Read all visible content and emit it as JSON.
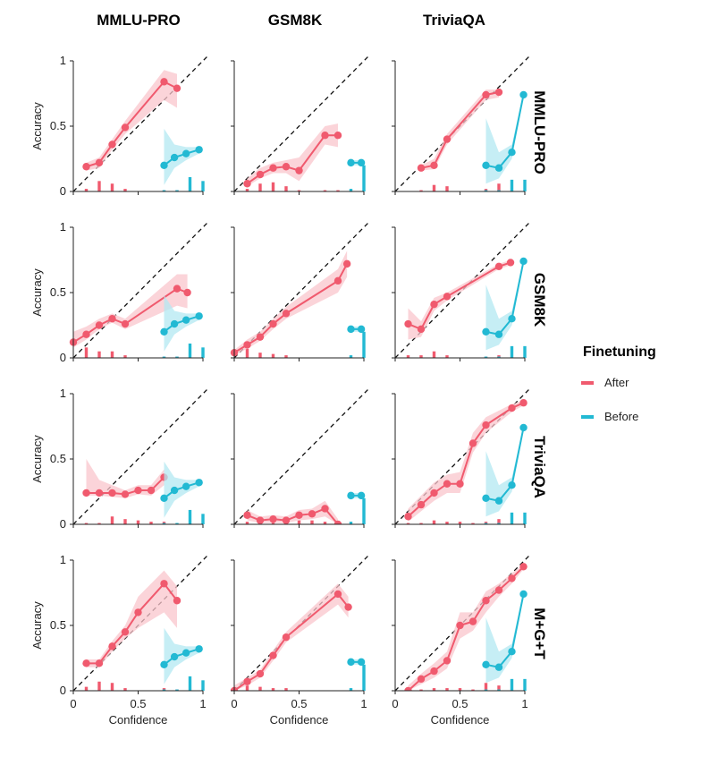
{
  "colors": {
    "after": "#f05a6e",
    "after_band": "#f9c5cc",
    "before": "#22b9d3",
    "before_band": "#b3e8f1",
    "diag": "#111111"
  },
  "chart_data": {
    "type": "line",
    "title": "",
    "col_titles": [
      "MMLU-PRO",
      "GSM8K",
      "TriviaQA"
    ],
    "row_titles": [
      "MMLU-PRO",
      "GSM8K",
      "TriviaQA",
      "M+G+T"
    ],
    "xlabel": "Confidence",
    "ylabel": "Accuracy",
    "xlim": [
      0,
      1
    ],
    "ylim": [
      0,
      1
    ],
    "xticks": [
      0,
      0.5,
      1
    ],
    "yticks": [
      0,
      0.5,
      1
    ],
    "xtick_labels": [
      "0",
      "0.5",
      "1"
    ],
    "ytick_labels": [
      "0",
      "0.5",
      "1"
    ],
    "legend": {
      "title": "Finetuning",
      "position": "right",
      "entries": [
        "After",
        "Before"
      ]
    },
    "before": {
      "MMLU-PRO": {
        "x": [
          0.7,
          0.78,
          0.87,
          0.97
        ],
        "y": [
          0.2,
          0.26,
          0.29,
          0.32
        ],
        "lo": [
          0.05,
          0.18,
          0.24,
          0.29
        ],
        "hi": [
          0.48,
          0.36,
          0.34,
          0.34
        ],
        "bar_x": [
          0.7,
          0.8,
          0.9,
          1.0
        ],
        "bar_h": [
          0.01,
          0.01,
          0.11,
          0.08
        ]
      },
      "GSM8K": {
        "x": [
          0.9,
          0.98
        ],
        "y": [
          0.22,
          0.22
        ],
        "lo": [
          0.2,
          0.2
        ],
        "hi": [
          0.24,
          0.24
        ],
        "bar_x": [
          0.9,
          1.0
        ],
        "bar_h": [
          0.02,
          0.2
        ]
      },
      "TriviaQA": {
        "x": [
          0.7,
          0.8,
          0.9,
          0.99
        ],
        "y": [
          0.2,
          0.18,
          0.3,
          0.74
        ],
        "lo": [
          0.06,
          0.1,
          0.25,
          0.72
        ],
        "hi": [
          0.56,
          0.3,
          0.36,
          0.76
        ],
        "bar_x": [
          0.7,
          0.8,
          0.9,
          1.0
        ],
        "bar_h": [
          0.01,
          0.01,
          0.09,
          0.09
        ]
      }
    },
    "panels": [
      {
        "row": "MMLU-PRO",
        "col": "MMLU-PRO",
        "x": [
          0.1,
          0.2,
          0.3,
          0.4,
          0.7,
          0.8
        ],
        "y": [
          0.19,
          0.22,
          0.36,
          0.49,
          0.84,
          0.79
        ],
        "lo": [
          0.16,
          0.18,
          0.32,
          0.44,
          0.7,
          0.64
        ],
        "hi": [
          0.22,
          0.26,
          0.4,
          0.54,
          0.93,
          0.9
        ],
        "bar_x": [
          0.1,
          0.2,
          0.3,
          0.4,
          0.7,
          0.8
        ],
        "bar_h": [
          0.02,
          0.08,
          0.06,
          0.02,
          0.01,
          0.01
        ]
      },
      {
        "row": "MMLU-PRO",
        "col": "GSM8K",
        "x": [
          0.1,
          0.2,
          0.3,
          0.4,
          0.5,
          0.7,
          0.8
        ],
        "y": [
          0.06,
          0.13,
          0.18,
          0.19,
          0.16,
          0.43,
          0.43
        ],
        "lo": [
          0.04,
          0.1,
          0.14,
          0.14,
          0.08,
          0.36,
          0.34
        ],
        "hi": [
          0.1,
          0.18,
          0.22,
          0.24,
          0.26,
          0.5,
          0.52
        ],
        "bar_x": [
          0.1,
          0.2,
          0.3,
          0.4,
          0.5,
          0.7,
          0.8
        ],
        "bar_h": [
          0.02,
          0.06,
          0.07,
          0.04,
          0.01,
          0.01,
          0.01
        ]
      },
      {
        "row": "MMLU-PRO",
        "col": "TriviaQA",
        "x": [
          0.2,
          0.3,
          0.4,
          0.7,
          0.8
        ],
        "y": [
          0.18,
          0.2,
          0.4,
          0.74,
          0.76
        ],
        "lo": [
          0.16,
          0.17,
          0.36,
          0.7,
          0.72
        ],
        "hi": [
          0.2,
          0.25,
          0.44,
          0.78,
          0.78
        ],
        "bar_x": [
          0.2,
          0.3,
          0.4,
          0.7,
          0.8
        ],
        "bar_h": [
          0.01,
          0.05,
          0.04,
          0.02,
          0.06
        ]
      },
      {
        "row": "GSM8K",
        "col": "MMLU-PRO",
        "x": [
          0.0,
          0.1,
          0.2,
          0.3,
          0.4,
          0.8,
          0.88
        ],
        "y": [
          0.12,
          0.18,
          0.25,
          0.3,
          0.26,
          0.53,
          0.5
        ],
        "lo": [
          0.08,
          0.14,
          0.22,
          0.27,
          0.22,
          0.4,
          0.38
        ],
        "hi": [
          0.2,
          0.24,
          0.3,
          0.34,
          0.3,
          0.64,
          0.64
        ],
        "bar_x": [
          0.1,
          0.2,
          0.3,
          0.4,
          0.7,
          0.8
        ],
        "bar_h": [
          0.08,
          0.05,
          0.05,
          0.02,
          0.01,
          0.01
        ]
      },
      {
        "row": "GSM8K",
        "col": "GSM8K",
        "x": [
          0.0,
          0.1,
          0.2,
          0.3,
          0.4,
          0.8,
          0.87
        ],
        "y": [
          0.04,
          0.1,
          0.16,
          0.26,
          0.34,
          0.59,
          0.72
        ],
        "lo": [
          0.02,
          0.07,
          0.13,
          0.22,
          0.3,
          0.5,
          0.62
        ],
        "hi": [
          0.06,
          0.14,
          0.2,
          0.3,
          0.39,
          0.68,
          0.82
        ],
        "bar_x": [
          0.1,
          0.2,
          0.3,
          0.4
        ],
        "bar_h": [
          0.07,
          0.04,
          0.03,
          0.02
        ]
      },
      {
        "row": "GSM8K",
        "col": "TriviaQA",
        "x": [
          0.1,
          0.2,
          0.3,
          0.4,
          0.8,
          0.89
        ],
        "y": [
          0.26,
          0.22,
          0.41,
          0.47,
          0.7,
          0.73
        ],
        "lo": [
          0.14,
          0.16,
          0.36,
          0.44,
          0.68,
          0.71
        ],
        "hi": [
          0.38,
          0.28,
          0.46,
          0.5,
          0.72,
          0.75
        ],
        "bar_x": [
          0.1,
          0.2,
          0.3,
          0.4,
          0.7,
          0.8
        ],
        "bar_h": [
          0.02,
          0.02,
          0.05,
          0.02,
          0.01,
          0.02
        ]
      },
      {
        "row": "TriviaQA",
        "col": "MMLU-PRO",
        "x": [
          0.1,
          0.2,
          0.3,
          0.4,
          0.5,
          0.6,
          0.7
        ],
        "y": [
          0.24,
          0.24,
          0.24,
          0.23,
          0.26,
          0.26,
          0.36
        ],
        "lo": [
          0.22,
          0.22,
          0.21,
          0.2,
          0.23,
          0.22,
          0.3
        ],
        "hi": [
          0.5,
          0.34,
          0.3,
          0.26,
          0.3,
          0.3,
          0.42
        ],
        "bar_x": [
          0.1,
          0.2,
          0.3,
          0.4,
          0.5,
          0.6,
          0.7
        ],
        "bar_h": [
          0.01,
          0.01,
          0.06,
          0.04,
          0.03,
          0.02,
          0.02
        ]
      },
      {
        "row": "TriviaQA",
        "col": "GSM8K",
        "x": [
          0.1,
          0.2,
          0.3,
          0.4,
          0.5,
          0.6,
          0.7,
          0.8
        ],
        "y": [
          0.07,
          0.03,
          0.04,
          0.03,
          0.07,
          0.08,
          0.12,
          0.0
        ],
        "lo": [
          0.03,
          0.01,
          0.01,
          0.01,
          0.03,
          0.04,
          0.06,
          0.0
        ],
        "hi": [
          0.11,
          0.06,
          0.07,
          0.06,
          0.11,
          0.12,
          0.18,
          0.04
        ],
        "bar_x": [
          0.1,
          0.2,
          0.3,
          0.4,
          0.5,
          0.6,
          0.7
        ],
        "bar_h": [
          0.02,
          0.01,
          0.02,
          0.02,
          0.03,
          0.03,
          0.02
        ]
      },
      {
        "row": "TriviaQA",
        "col": "TriviaQA",
        "x": [
          0.1,
          0.2,
          0.3,
          0.4,
          0.5,
          0.6,
          0.7,
          0.9,
          0.99
        ],
        "y": [
          0.06,
          0.15,
          0.24,
          0.31,
          0.31,
          0.62,
          0.76,
          0.89,
          0.93
        ],
        "lo": [
          0.02,
          0.1,
          0.18,
          0.24,
          0.24,
          0.55,
          0.7,
          0.86,
          0.91
        ],
        "hi": [
          0.12,
          0.22,
          0.32,
          0.38,
          0.4,
          0.7,
          0.82,
          0.92,
          0.95
        ],
        "bar_x": [
          0.1,
          0.2,
          0.3,
          0.4,
          0.5,
          0.6,
          0.7,
          0.8
        ],
        "bar_h": [
          0.01,
          0.01,
          0.03,
          0.02,
          0.02,
          0.01,
          0.02,
          0.04
        ]
      },
      {
        "row": "M+G+T",
        "col": "MMLU-PRO",
        "x": [
          0.1,
          0.2,
          0.3,
          0.4,
          0.5,
          0.7,
          0.8
        ],
        "y": [
          0.21,
          0.21,
          0.34,
          0.45,
          0.6,
          0.82,
          0.69
        ],
        "lo": [
          0.18,
          0.18,
          0.3,
          0.4,
          0.48,
          0.6,
          0.48
        ],
        "hi": [
          0.24,
          0.24,
          0.38,
          0.5,
          0.72,
          0.92,
          0.8
        ],
        "bar_x": [
          0.1,
          0.2,
          0.3,
          0.4,
          0.7,
          0.8
        ],
        "bar_h": [
          0.03,
          0.07,
          0.06,
          0.02,
          0.02,
          0.01
        ]
      },
      {
        "row": "M+G+T",
        "col": "GSM8K",
        "x": [
          0.0,
          0.1,
          0.2,
          0.3,
          0.4,
          0.8,
          0.88
        ],
        "y": [
          0.0,
          0.07,
          0.13,
          0.27,
          0.41,
          0.74,
          0.64
        ],
        "lo": [
          0.0,
          0.04,
          0.1,
          0.23,
          0.37,
          0.66,
          0.56
        ],
        "hi": [
          0.04,
          0.1,
          0.16,
          0.31,
          0.45,
          0.82,
          0.72
        ],
        "bar_x": [
          0.1,
          0.2,
          0.3,
          0.4
        ],
        "bar_h": [
          0.04,
          0.03,
          0.02,
          0.02
        ]
      },
      {
        "row": "M+G+T",
        "col": "TriviaQA",
        "x": [
          0.1,
          0.2,
          0.3,
          0.4,
          0.5,
          0.6,
          0.7,
          0.8,
          0.9,
          0.99
        ],
        "y": [
          0.0,
          0.09,
          0.15,
          0.23,
          0.5,
          0.53,
          0.69,
          0.77,
          0.86,
          0.95
        ],
        "lo": [
          0.0,
          0.05,
          0.1,
          0.17,
          0.4,
          0.46,
          0.6,
          0.72,
          0.82,
          0.93
        ],
        "hi": [
          0.04,
          0.13,
          0.21,
          0.3,
          0.6,
          0.6,
          0.76,
          0.82,
          0.9,
          0.97
        ],
        "bar_x": [
          0.1,
          0.2,
          0.3,
          0.4,
          0.5,
          0.6,
          0.7,
          0.8
        ],
        "bar_h": [
          0.01,
          0.01,
          0.02,
          0.02,
          0.02,
          0.01,
          0.06,
          0.04
        ]
      }
    ]
  }
}
